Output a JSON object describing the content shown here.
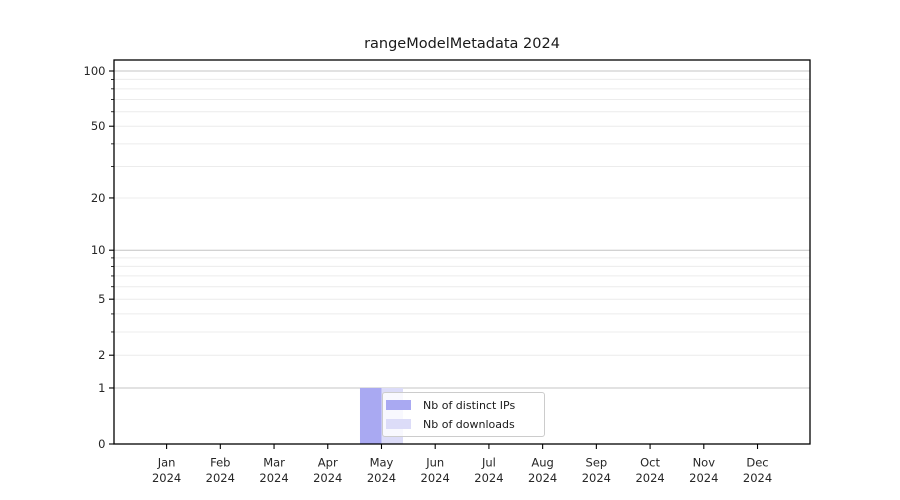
{
  "chart_data": {
    "type": "bar",
    "title": "rangeModelMetadata 2024",
    "x_axis": {
      "categories": [
        "Jan",
        "Feb",
        "Mar",
        "Apr",
        "May",
        "Jun",
        "Jul",
        "Aug",
        "Sep",
        "Oct",
        "Nov",
        "Dec"
      ],
      "year_line": "2024"
    },
    "y_axis": {
      "scale": "log1p",
      "tick_values": [
        0,
        1,
        2,
        5,
        10,
        20,
        50,
        100
      ],
      "tick_labels": [
        "0",
        "1",
        "2",
        "5",
        "10",
        "20",
        "50",
        "100"
      ],
      "major_gridlines": [
        1,
        10,
        100
      ],
      "minor_gridlines": [
        2,
        3,
        4,
        5,
        6,
        7,
        8,
        9,
        20,
        30,
        40,
        50,
        60,
        70,
        80,
        90
      ],
      "range": [
        0,
        115
      ],
      "grid": true
    },
    "series": [
      {
        "name": "Nb of distinct IPs",
        "color": "#a9a9f2",
        "values": [
          0,
          0,
          0,
          0,
          1,
          0,
          0,
          0,
          0,
          0,
          0,
          0
        ]
      },
      {
        "name": "Nb of downloads",
        "color": "#dcdcf8",
        "values": [
          0,
          0,
          0,
          0,
          1,
          0,
          0,
          0,
          0,
          0,
          0,
          0
        ]
      }
    ],
    "legend": {
      "entries": [
        "Nb of distinct IPs",
        "Nb of downloads"
      ],
      "position": "lower center, inside plot",
      "border_color": "#cccccc",
      "background": "rgba(255,255,255,0.8)"
    },
    "colors": {
      "major_grid": "#c4c4c4",
      "minor_grid": "#ececec",
      "spine": "#000000",
      "tick_text": "#262626",
      "background": "#ffffff"
    }
  }
}
